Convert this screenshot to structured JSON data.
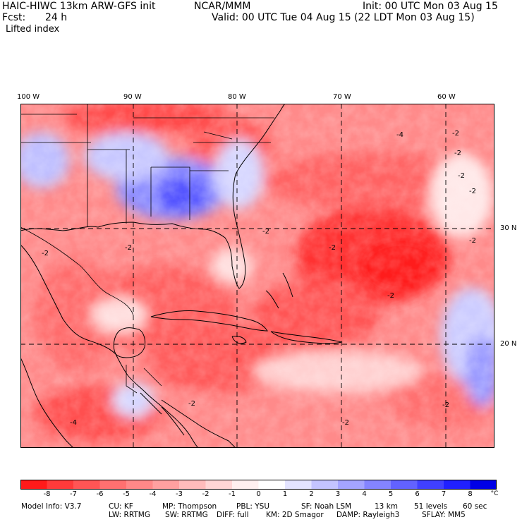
{
  "header": {
    "model": "HAIC-HIWC 13km ARW-GFS init",
    "org": "NCAR/MMM",
    "init": "Init: 00 UTC Mon 03 Aug 15",
    "fcst_label": "Fcst:",
    "fcst_value": "24 h",
    "valid": "Valid: 00 UTC Tue 04 Aug 15 (22 LDT Mon 03 Aug 15)",
    "field": "Lifted index"
  },
  "map": {
    "lon_labels": [
      "100 W",
      "90 W",
      "80 W",
      "70 W",
      "60 W"
    ],
    "lat_labels": [
      "30 N",
      "20 N"
    ],
    "contour_labels": [
      "-4",
      "-2",
      "-2",
      "-2",
      "-2",
      "-2",
      "-2",
      "-2",
      "-2",
      "-2",
      "-2",
      "-2",
      "-4",
      "-2",
      "-2"
    ],
    "colors": {
      "neg_max": "#ff1010",
      "neutral": "#ffffff",
      "pos_max": "#0000f0",
      "grid": "#000000"
    }
  },
  "colorbar": {
    "ticks": [
      "-8",
      "-7",
      "-6",
      "-5",
      "-4",
      "-3",
      "-2",
      "-1",
      "0",
      "1",
      "2",
      "3",
      "4",
      "5",
      "6",
      "7",
      "8"
    ],
    "unit": "°C",
    "colors": [
      "#ff1a1a",
      "#ff3a3a",
      "#ff5555",
      "#ff7070",
      "#ff8888",
      "#ffa0a0",
      "#ffbcbc",
      "#ffd6d6",
      "#fff0f0",
      "#ffffff",
      "#e4e4ff",
      "#c4c4ff",
      "#a4a4ff",
      "#8484ff",
      "#6262ff",
      "#4040ff",
      "#2020ff",
      "#0000e6"
    ]
  },
  "footer": {
    "line1": [
      "Model Info: V3.7",
      "CU: KF",
      "MP: Thompson",
      "PBL: YSU",
      "SF: Noah LSM",
      "13 km",
      "51 levels",
      "60 sec"
    ],
    "line2": [
      "LW: RRTMG",
      "SW: RRTMG",
      "DIFF: full",
      "KM: 2D Smagor",
      "DAMP: Rayleigh3",
      "SFLAY: MM5"
    ]
  }
}
